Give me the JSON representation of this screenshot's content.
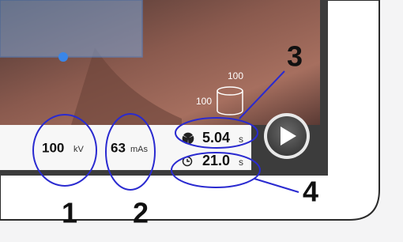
{
  "screen": {
    "cylinder_labels": {
      "top": "100",
      "side": "100"
    },
    "kv": {
      "value": "100",
      "unit": "kV"
    },
    "mas": {
      "value": "63",
      "unit": "mAs"
    },
    "exposure_time": {
      "value": "5.04",
      "unit": "s"
    },
    "total_time": {
      "value": "21.0",
      "unit": "s"
    }
  },
  "annotations": [
    "1",
    "2",
    "3",
    "4"
  ]
}
